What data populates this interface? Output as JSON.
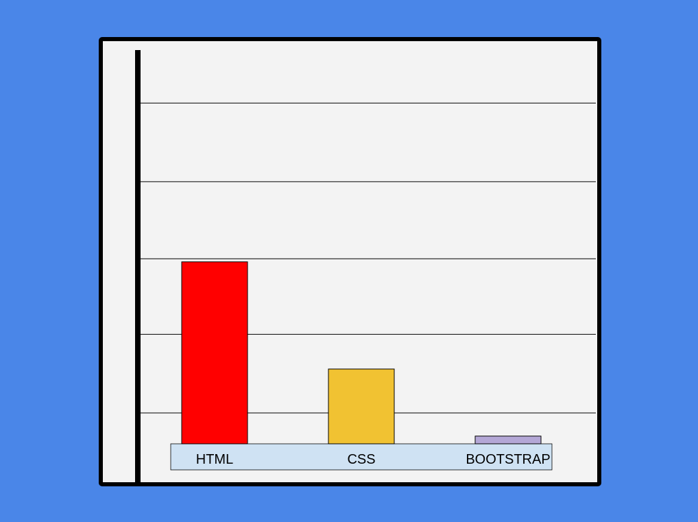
{
  "chart_data": {
    "type": "bar",
    "categories": [
      "HTML",
      "CSS",
      "BOOTSTRAP"
    ],
    "values": [
      2.36,
      0.97,
      0.1
    ],
    "colors": [
      "#FF0000",
      "#F1C232",
      "#B4A7D6"
    ],
    "ylim": [
      0,
      5
    ],
    "grid": true,
    "gridlines": [
      0.4,
      1.42,
      2.4,
      3.4,
      4.42
    ],
    "title": "",
    "xlabel": "",
    "ylabel": ""
  },
  "colors": {
    "background": "#4A86E8",
    "plot_background": "#F3F3F3",
    "frame": "#000000",
    "category_band": "#CFE2F3"
  }
}
